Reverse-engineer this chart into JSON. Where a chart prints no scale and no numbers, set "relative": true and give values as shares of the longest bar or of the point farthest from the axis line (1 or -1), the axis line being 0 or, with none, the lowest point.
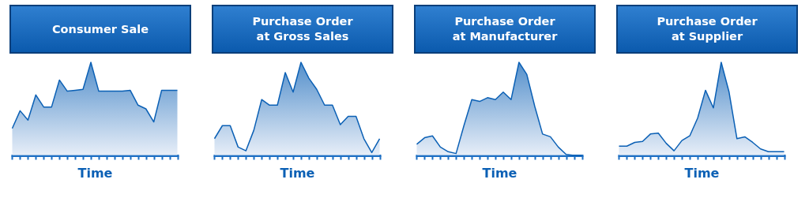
{
  "chart_data": [
    {
      "type": "area",
      "title": "Consumer Sale",
      "xlabel": "Time",
      "relative": true,
      "tick_labels": false,
      "color": "#0b60b5",
      "categories": [
        null,
        null,
        null,
        null,
        null,
        null,
        null,
        null,
        null,
        null,
        null,
        null,
        null,
        null,
        null,
        null,
        null,
        null,
        null,
        null,
        null,
        null
      ],
      "values": [
        0.29,
        0.48,
        0.38,
        0.65,
        0.52,
        0.52,
        0.81,
        0.69,
        0.7,
        0.71,
        1,
        0.69,
        0.69,
        0.69,
        0.69,
        0.7,
        0.54,
        0.5,
        0.36,
        0.7,
        0.7,
        0.7
      ]
    },
    {
      "type": "area",
      "title": "Purchase Order\nat Gross Sales",
      "xlabel": "Time",
      "relative": true,
      "tick_labels": false,
      "color": "#0b60b5",
      "categories": [
        null,
        null,
        null,
        null,
        null,
        null,
        null,
        null,
        null,
        null,
        null,
        null,
        null,
        null,
        null,
        null,
        null,
        null,
        null,
        null,
        null,
        null
      ],
      "values": [
        0.18,
        0.32,
        0.32,
        0.09,
        0.05,
        0.27,
        0.6,
        0.54,
        0.54,
        0.89,
        0.68,
        1,
        0.83,
        0.71,
        0.54,
        0.54,
        0.33,
        0.42,
        0.42,
        0.18,
        0.03,
        0.18
      ]
    },
    {
      "type": "area",
      "title": "Purchase Order\nat Manufacturer",
      "xlabel": "Time",
      "relative": true,
      "tick_labels": false,
      "color": "#0b60b5",
      "categories": [
        null,
        null,
        null,
        null,
        null,
        null,
        null,
        null,
        null,
        null,
        null,
        null,
        null,
        null,
        null,
        null,
        null,
        null,
        null,
        null,
        null,
        null
      ],
      "values": [
        0.12,
        0.19,
        0.21,
        0.09,
        0.04,
        0.02,
        0.32,
        0.6,
        0.58,
        0.62,
        0.6,
        0.68,
        0.6,
        1,
        0.87,
        0.53,
        0.23,
        0.2,
        0.09,
        0.01,
        0,
        0
      ]
    },
    {
      "type": "area",
      "title": "Purchase Order\nat Supplier",
      "xlabel": "Time",
      "relative": true,
      "tick_labels": false,
      "color": "#0b60b5",
      "categories": [
        null,
        null,
        null,
        null,
        null,
        null,
        null,
        null,
        null,
        null,
        null,
        null,
        null,
        null,
        null,
        null,
        null,
        null,
        null,
        null,
        null,
        null
      ],
      "values": [
        0.1,
        0.1,
        0.14,
        0.15,
        0.23,
        0.24,
        0.13,
        0.05,
        0.16,
        0.21,
        0.4,
        0.7,
        0.51,
        1,
        0.68,
        0.18,
        0.2,
        0.14,
        0.07,
        0.04,
        0.04,
        0.04
      ]
    }
  ]
}
